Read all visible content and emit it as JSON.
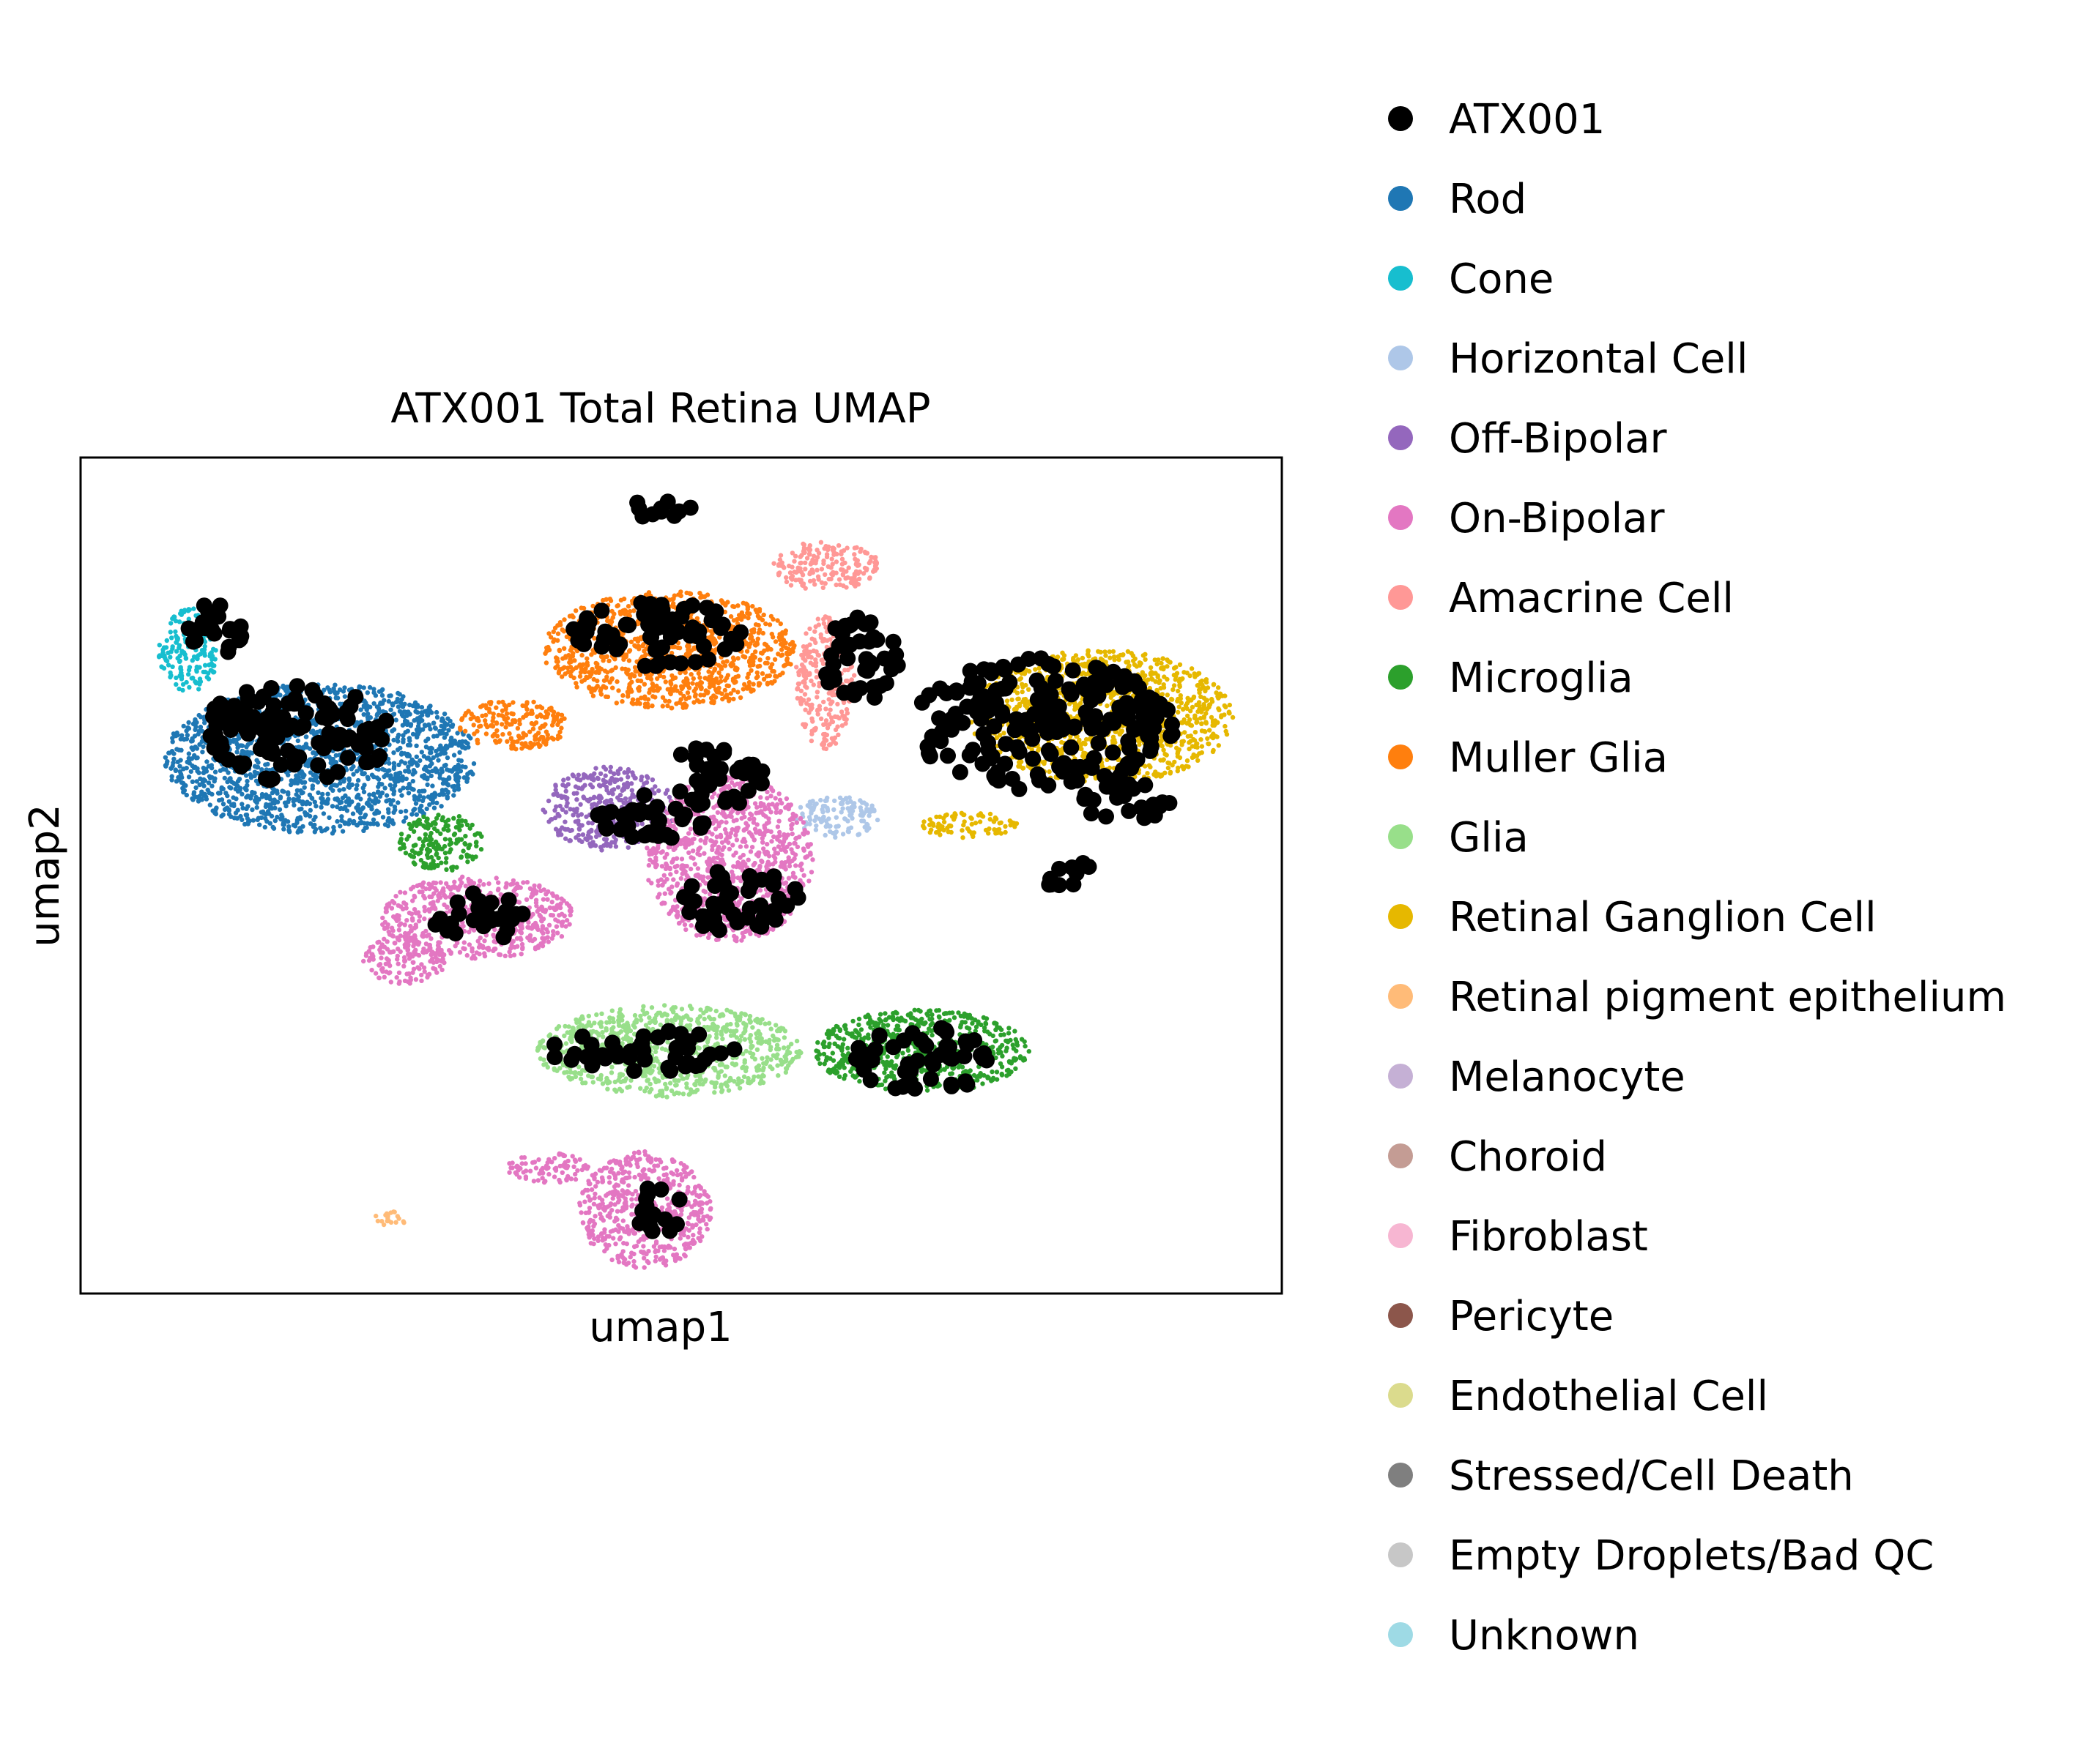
{
  "chart_data": {
    "type": "scatter",
    "title": "ATX001 Total Retina UMAP",
    "xlabel": "umap1",
    "ylabel": "umap2",
    "xticks": "none",
    "yticks": "none",
    "grid": false,
    "legend_position": "right-outside",
    "xlim": [
      0,
      100
    ],
    "ylim": [
      0,
      100
    ],
    "legend": [
      {
        "label": "ATX001",
        "color": "#000000"
      },
      {
        "label": "Rod",
        "color": "#1f77b4"
      },
      {
        "label": "Cone",
        "color": "#17becf"
      },
      {
        "label": "Horizontal Cell",
        "color": "#aec7e8"
      },
      {
        "label": "Off-Bipolar",
        "color": "#9467bd"
      },
      {
        "label": "On-Bipolar",
        "color": "#e377c2"
      },
      {
        "label": "Amacrine Cell",
        "color": "#ff9896"
      },
      {
        "label": "Microglia",
        "color": "#2ca02c"
      },
      {
        "label": "Muller Glia",
        "color": "#ff7f0e"
      },
      {
        "label": "Glia",
        "color": "#98df8a"
      },
      {
        "label": "Retinal Ganglion Cell",
        "color": "#e6b800"
      },
      {
        "label": "Retinal pigment epithelium",
        "color": "#ffbb78"
      },
      {
        "label": "Melanocyte",
        "color": "#c5b0d5"
      },
      {
        "label": "Choroid",
        "color": "#c49c94"
      },
      {
        "label": "Fibroblast",
        "color": "#f7b6d2"
      },
      {
        "label": "Pericyte",
        "color": "#8c564b"
      },
      {
        "label": "Endothelial Cell",
        "color": "#dbdb8d"
      },
      {
        "label": "Stressed/Cell Death",
        "color": "#7f7f7f"
      },
      {
        "label": "Empty Droplets/Bad QC",
        "color": "#c7c7c7"
      },
      {
        "label": "Unknown",
        "color": "#9edae5"
      }
    ],
    "clusters": [
      {
        "label": "Rod",
        "color": "#1f77b4",
        "cx": 20,
        "cy": 64,
        "rx": 13,
        "ry": 9
      },
      {
        "label": "Cone",
        "color": "#17becf",
        "cx": 9,
        "cy": 77,
        "rx": 2.5,
        "ry": 5
      },
      {
        "label": "Horizontal Cell",
        "color": "#aec7e8",
        "cx": 63,
        "cy": 57,
        "rx": 3.5,
        "ry": 2.5
      },
      {
        "label": "Off-Bipolar",
        "color": "#9467bd",
        "cx": 44,
        "cy": 58,
        "rx": 5.5,
        "ry": 5
      },
      {
        "label": "On-Bipolar",
        "color": "#e377c2",
        "cx": 33,
        "cy": 45,
        "rx": 8,
        "ry": 5
      },
      {
        "label": "On-Bipolar",
        "color": "#e377c2",
        "cx": 54,
        "cy": 52,
        "rx": 7,
        "ry": 10
      },
      {
        "label": "On-Bipolar",
        "color": "#e377c2",
        "cx": 27,
        "cy": 40,
        "rx": 3.5,
        "ry": 3
      },
      {
        "label": "On-Bipolar",
        "color": "#e377c2",
        "cx": 47,
        "cy": 10,
        "rx": 5.5,
        "ry": 7
      },
      {
        "label": "On-Bipolar",
        "color": "#e377c2",
        "cx": 39,
        "cy": 15,
        "rx": 3.5,
        "ry": 1.8
      },
      {
        "label": "Amacrine Cell",
        "color": "#ff9896",
        "cx": 62,
        "cy": 87,
        "rx": 4.5,
        "ry": 3
      },
      {
        "label": "Amacrine Cell",
        "color": "#ff9896",
        "cx": 62,
        "cy": 73,
        "rx": 2.5,
        "ry": 8
      },
      {
        "label": "Microglia",
        "color": "#2ca02c",
        "cx": 70,
        "cy": 29,
        "rx": 9,
        "ry": 5
      },
      {
        "label": "Microglia",
        "color": "#2ca02c",
        "cx": 30,
        "cy": 54,
        "rx": 3.5,
        "ry": 3.5
      },
      {
        "label": "Muller Glia",
        "color": "#ff7f0e",
        "cx": 49,
        "cy": 77,
        "rx": 10.5,
        "ry": 7
      },
      {
        "label": "Muller Glia",
        "color": "#ff7f0e",
        "cx": 36,
        "cy": 68,
        "rx": 4.5,
        "ry": 3
      },
      {
        "label": "Glia",
        "color": "#98df8a",
        "cx": 49,
        "cy": 29,
        "rx": 11,
        "ry": 5.5
      },
      {
        "label": "Retinal Ganglion Cell",
        "color": "#e6b800",
        "cx": 85,
        "cy": 69,
        "rx": 11,
        "ry": 8
      },
      {
        "label": "Retinal Ganglion Cell",
        "color": "#e6b800",
        "cx": 74,
        "cy": 56,
        "rx": 4,
        "ry": 1.5
      },
      {
        "label": "Retinal pigment epithelium",
        "color": "#ffbb78",
        "cx": 26,
        "cy": 9,
        "rx": 1.5,
        "ry": 0.9
      },
      {
        "label": "ATX001",
        "color": "#000000",
        "cx": 80,
        "cy": 68,
        "rx": 11,
        "ry": 8
      },
      {
        "label": "ATX001",
        "color": "#000000",
        "cx": 18,
        "cy": 67,
        "rx": 8,
        "ry": 6
      },
      {
        "label": "ATX001",
        "color": "#000000",
        "cx": 48,
        "cy": 79,
        "rx": 7,
        "ry": 4
      },
      {
        "label": "ATX001",
        "color": "#000000",
        "cx": 65,
        "cy": 76,
        "rx": 3.5,
        "ry": 5
      },
      {
        "label": "ATX001",
        "color": "#000000",
        "cx": 53,
        "cy": 62,
        "rx": 4,
        "ry": 4
      },
      {
        "label": "ATX001",
        "color": "#000000",
        "cx": 48,
        "cy": 57,
        "rx": 5,
        "ry": 3
      },
      {
        "label": "ATX001",
        "color": "#000000",
        "cx": 70,
        "cy": 28,
        "rx": 6,
        "ry": 4
      },
      {
        "label": "ATX001",
        "color": "#000000",
        "cx": 47,
        "cy": 29,
        "rx": 8,
        "ry": 2.5
      },
      {
        "label": "ATX001",
        "color": "#000000",
        "cx": 48,
        "cy": 10,
        "rx": 2,
        "ry": 3.5
      },
      {
        "label": "ATX001",
        "color": "#000000",
        "cx": 55,
        "cy": 47,
        "rx": 5,
        "ry": 4
      },
      {
        "label": "ATX001",
        "color": "#000000",
        "cx": 33,
        "cy": 45,
        "rx": 4,
        "ry": 3
      },
      {
        "label": "ATX001",
        "color": "#000000",
        "cx": 11,
        "cy": 79,
        "rx": 2.5,
        "ry": 4
      },
      {
        "label": "ATX001",
        "color": "#000000",
        "cx": 87,
        "cy": 59,
        "rx": 4,
        "ry": 2.5
      },
      {
        "label": "ATX001",
        "color": "#000000",
        "cx": 48,
        "cy": 94,
        "rx": 3,
        "ry": 1.5
      },
      {
        "label": "ATX001",
        "color": "#000000",
        "cx": 82,
        "cy": 50,
        "rx": 2.5,
        "ry": 2
      }
    ]
  }
}
